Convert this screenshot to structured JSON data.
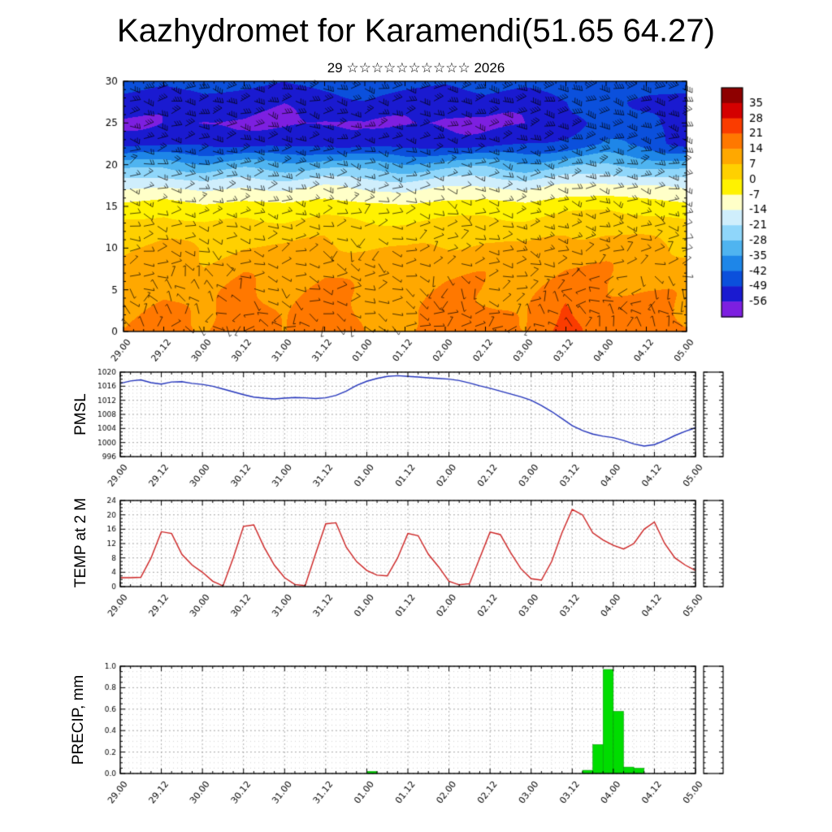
{
  "header": {
    "title": "Kazhydromet for Karamendi(51.65 64.27)",
    "subtitle": "29 ☆☆☆☆☆☆☆☆☆☆ 2026"
  },
  "chart_data": [
    {
      "type": "heatmap",
      "name": "temperature-wind-time-height-cross-section",
      "x_labels": [
        "29.00",
        "29.12",
        "30.00",
        "30.12",
        "31.00",
        "31.12",
        "01.00",
        "01.12",
        "02.00",
        "02.12",
        "03.00",
        "03.12",
        "04.00",
        "04.12",
        "05.00"
      ],
      "ylim": [
        0,
        30
      ],
      "y_ticks": [
        0,
        5,
        10,
        15,
        20,
        25,
        30
      ],
      "heights": [
        30,
        27.5,
        25,
        22.5,
        20,
        17.5,
        15,
        12.5,
        10,
        7.5,
        5,
        2.5,
        0
      ],
      "temperature_grid": [
        [
          -46,
          -48,
          -45,
          -47,
          -49,
          -46,
          -44,
          -46,
          -48,
          -45,
          -47,
          -44,
          -42,
          -45,
          -46
        ],
        [
          -52,
          -54,
          -51,
          -53,
          -55,
          -52,
          -50,
          -53,
          -55,
          -52,
          -54,
          -50,
          -46,
          -50,
          -52
        ],
        [
          -57,
          -55,
          -58,
          -56,
          -57,
          -58,
          -55,
          -57,
          -58,
          -56,
          -57,
          -52,
          -44,
          -48,
          -55
        ],
        [
          -50,
          -52,
          -49,
          -51,
          -53,
          -50,
          -52,
          -54,
          -51,
          -53,
          -50,
          -46,
          -42,
          -45,
          -50
        ],
        [
          -32,
          -30,
          -34,
          -31,
          -33,
          -30,
          -32,
          -34,
          -31,
          -30,
          -33,
          -30,
          -28,
          -30,
          -32
        ],
        [
          -16,
          -14,
          -18,
          -15,
          -17,
          -14,
          -16,
          -18,
          -15,
          -14,
          -17,
          -13,
          -12,
          -14,
          -16
        ],
        [
          -5,
          -3,
          -6,
          -4,
          -5,
          -3,
          -5,
          -6,
          -4,
          -3,
          -5,
          -2,
          -1,
          -3,
          -5
        ],
        [
          2,
          4,
          1,
          3,
          2,
          4,
          2,
          1,
          3,
          4,
          2,
          5,
          6,
          4,
          2
        ],
        [
          7,
          9,
          6,
          8,
          7,
          9,
          7,
          6,
          8,
          9,
          7,
          10,
          11,
          9,
          7
        ],
        [
          10,
          12,
          9,
          12,
          10,
          13,
          10,
          9,
          12,
          12,
          10,
          14,
          13,
          12,
          10
        ],
        [
          12,
          14,
          11,
          15,
          12,
          16,
          12,
          11,
          14,
          14,
          12,
          18,
          15,
          14,
          12
        ],
        [
          13,
          16,
          12,
          18,
          13,
          18,
          13,
          12,
          16,
          15,
          13,
          22,
          16,
          16,
          13
        ],
        [
          14,
          17,
          13,
          19,
          14,
          19,
          14,
          13,
          17,
          16,
          14,
          24,
          17,
          17,
          14
        ]
      ],
      "wind_u_grid": [
        [
          18,
          22,
          20,
          16,
          20,
          24,
          26,
          22
        ],
        [
          15,
          18,
          16,
          14,
          16,
          20,
          22,
          18
        ],
        [
          10,
          12,
          14,
          10,
          8,
          12,
          16,
          14
        ],
        [
          6,
          8,
          10,
          6,
          4,
          8,
          10,
          8
        ],
        [
          4,
          6,
          2,
          -2,
          4,
          8,
          6,
          4
        ],
        [
          2,
          -4,
          4,
          6,
          -2,
          4,
          -6,
          2
        ],
        [
          -2,
          3,
          -4,
          2,
          4,
          -3,
          2,
          -2
        ]
      ],
      "wind_v_grid": [
        [
          2,
          -3,
          4,
          -2,
          3,
          -4,
          2,
          3
        ],
        [
          -3,
          4,
          -4,
          3,
          -2,
          4,
          -3,
          -2
        ],
        [
          4,
          -2,
          3,
          -4,
          2,
          -3,
          4,
          2
        ],
        [
          -4,
          3,
          -2,
          4,
          -3,
          2,
          -4,
          -3
        ],
        [
          3,
          -4,
          2,
          -3,
          4,
          -2,
          3,
          4
        ],
        [
          -2,
          4,
          -3,
          2,
          -4,
          3,
          -2,
          -4
        ],
        [
          4,
          -3,
          2,
          -4,
          3,
          -2,
          4,
          3
        ]
      ],
      "colorbar": {
        "levels": [
          35,
          28,
          21,
          14,
          7,
          0,
          -7,
          -14,
          -21,
          -28,
          -35,
          -42,
          -49,
          -56
        ],
        "colors": [
          "#8e0000",
          "#d40000",
          "#fa3c00",
          "#ff7800",
          "#ffa800",
          "#ffd000",
          "#fff200",
          "#ffffc8",
          "#cfeefc",
          "#8fd6fa",
          "#4fb4f0",
          "#1e86e8",
          "#0b50dc",
          "#1a1ad0",
          "#7d1fe0"
        ]
      }
    },
    {
      "type": "line",
      "name": "pmsl",
      "ylabel": "PMSL",
      "color": "#2233bb",
      "x_labels": [
        "29.00",
        "29.12",
        "30.00",
        "30.12",
        "31.00",
        "31.12",
        "01.00",
        "01.12",
        "02.00",
        "02.12",
        "03.00",
        "03.12",
        "04.00",
        "04.12",
        "05.00"
      ],
      "x_step_hours": 3,
      "ylim": [
        996,
        1020
      ],
      "y_ticks": [
        996,
        1000,
        1004,
        1008,
        1012,
        1016,
        1020
      ],
      "values": [
        1016.8,
        1017.5,
        1017.8,
        1017.0,
        1016.6,
        1017.2,
        1017.3,
        1016.8,
        1016.5,
        1016.0,
        1015.2,
        1014.4,
        1013.6,
        1012.9,
        1012.6,
        1012.4,
        1012.6,
        1012.8,
        1012.7,
        1012.5,
        1012.7,
        1013.4,
        1014.6,
        1016.2,
        1017.4,
        1018.2,
        1018.8,
        1019.0,
        1018.8,
        1018.6,
        1018.4,
        1018.2,
        1018.0,
        1017.6,
        1016.9,
        1016.1,
        1015.4,
        1014.6,
        1013.8,
        1013.0,
        1012.0,
        1010.5,
        1008.8,
        1006.8,
        1004.8,
        1003.4,
        1002.4,
        1001.8,
        1001.4,
        1000.6,
        999.6,
        999.0,
        999.4,
        1000.6,
        1002.0,
        1003.2,
        1004.2
      ]
    },
    {
      "type": "line",
      "name": "temp-2m",
      "ylabel": "TEMP at 2 M",
      "color": "#cc2222",
      "x_labels": [
        "29.00",
        "29.12",
        "30.00",
        "30.12",
        "31.00",
        "31.12",
        "01.00",
        "01.12",
        "02.00",
        "02.12",
        "03.00",
        "03.12",
        "04.00",
        "04.12",
        "05.00"
      ],
      "x_step_hours": 3,
      "ylim": [
        0,
        24
      ],
      "y_ticks": [
        0,
        4,
        8,
        12,
        16,
        20,
        24
      ],
      "values": [
        2.5,
        2.5,
        2.6,
        8.0,
        15.3,
        14.8,
        9.0,
        6.0,
        4.0,
        1.5,
        0.2,
        8.0,
        16.8,
        17.2,
        11.0,
        6.0,
        2.5,
        0.6,
        0.3,
        9.0,
        17.5,
        17.8,
        11.0,
        7.0,
        4.5,
        3.2,
        3.0,
        8.0,
        14.8,
        14.2,
        9.0,
        5.5,
        1.5,
        0.5,
        0.8,
        8.0,
        15.2,
        14.5,
        9.5,
        5.0,
        2.2,
        1.8,
        7.0,
        15.0,
        21.5,
        20.0,
        15.0,
        13.0,
        11.5,
        10.5,
        12.0,
        16.0,
        18.0,
        12.0,
        8.0,
        6.0,
        4.5
      ]
    },
    {
      "type": "bar",
      "name": "precipitation",
      "ylabel": "PRECIP, mm",
      "color": "#00dd00",
      "x_labels": [
        "29.00",
        "29.12",
        "30.00",
        "30.12",
        "31.00",
        "31.12",
        "01.00",
        "01.12",
        "02.00",
        "02.12",
        "03.00",
        "03.12",
        "04.00",
        "04.12",
        "05.00"
      ],
      "x_step_hours": 3,
      "ylim": [
        0,
        1.0
      ],
      "y_ticks": [
        0.0,
        0.2,
        0.4,
        0.6,
        0.8,
        1.0
      ],
      "values": [
        0,
        0,
        0,
        0,
        0,
        0,
        0,
        0,
        0,
        0,
        0,
        0,
        0,
        0,
        0,
        0,
        0,
        0,
        0,
        0,
        0,
        0,
        0,
        0,
        0.02,
        0,
        0,
        0,
        0,
        0,
        0,
        0,
        0,
        0,
        0,
        0,
        0,
        0,
        0,
        0,
        0,
        0,
        0,
        0,
        0,
        0.03,
        0.27,
        0.97,
        0.58,
        0.06,
        0.05,
        0,
        0,
        0,
        0,
        0,
        0
      ]
    }
  ]
}
